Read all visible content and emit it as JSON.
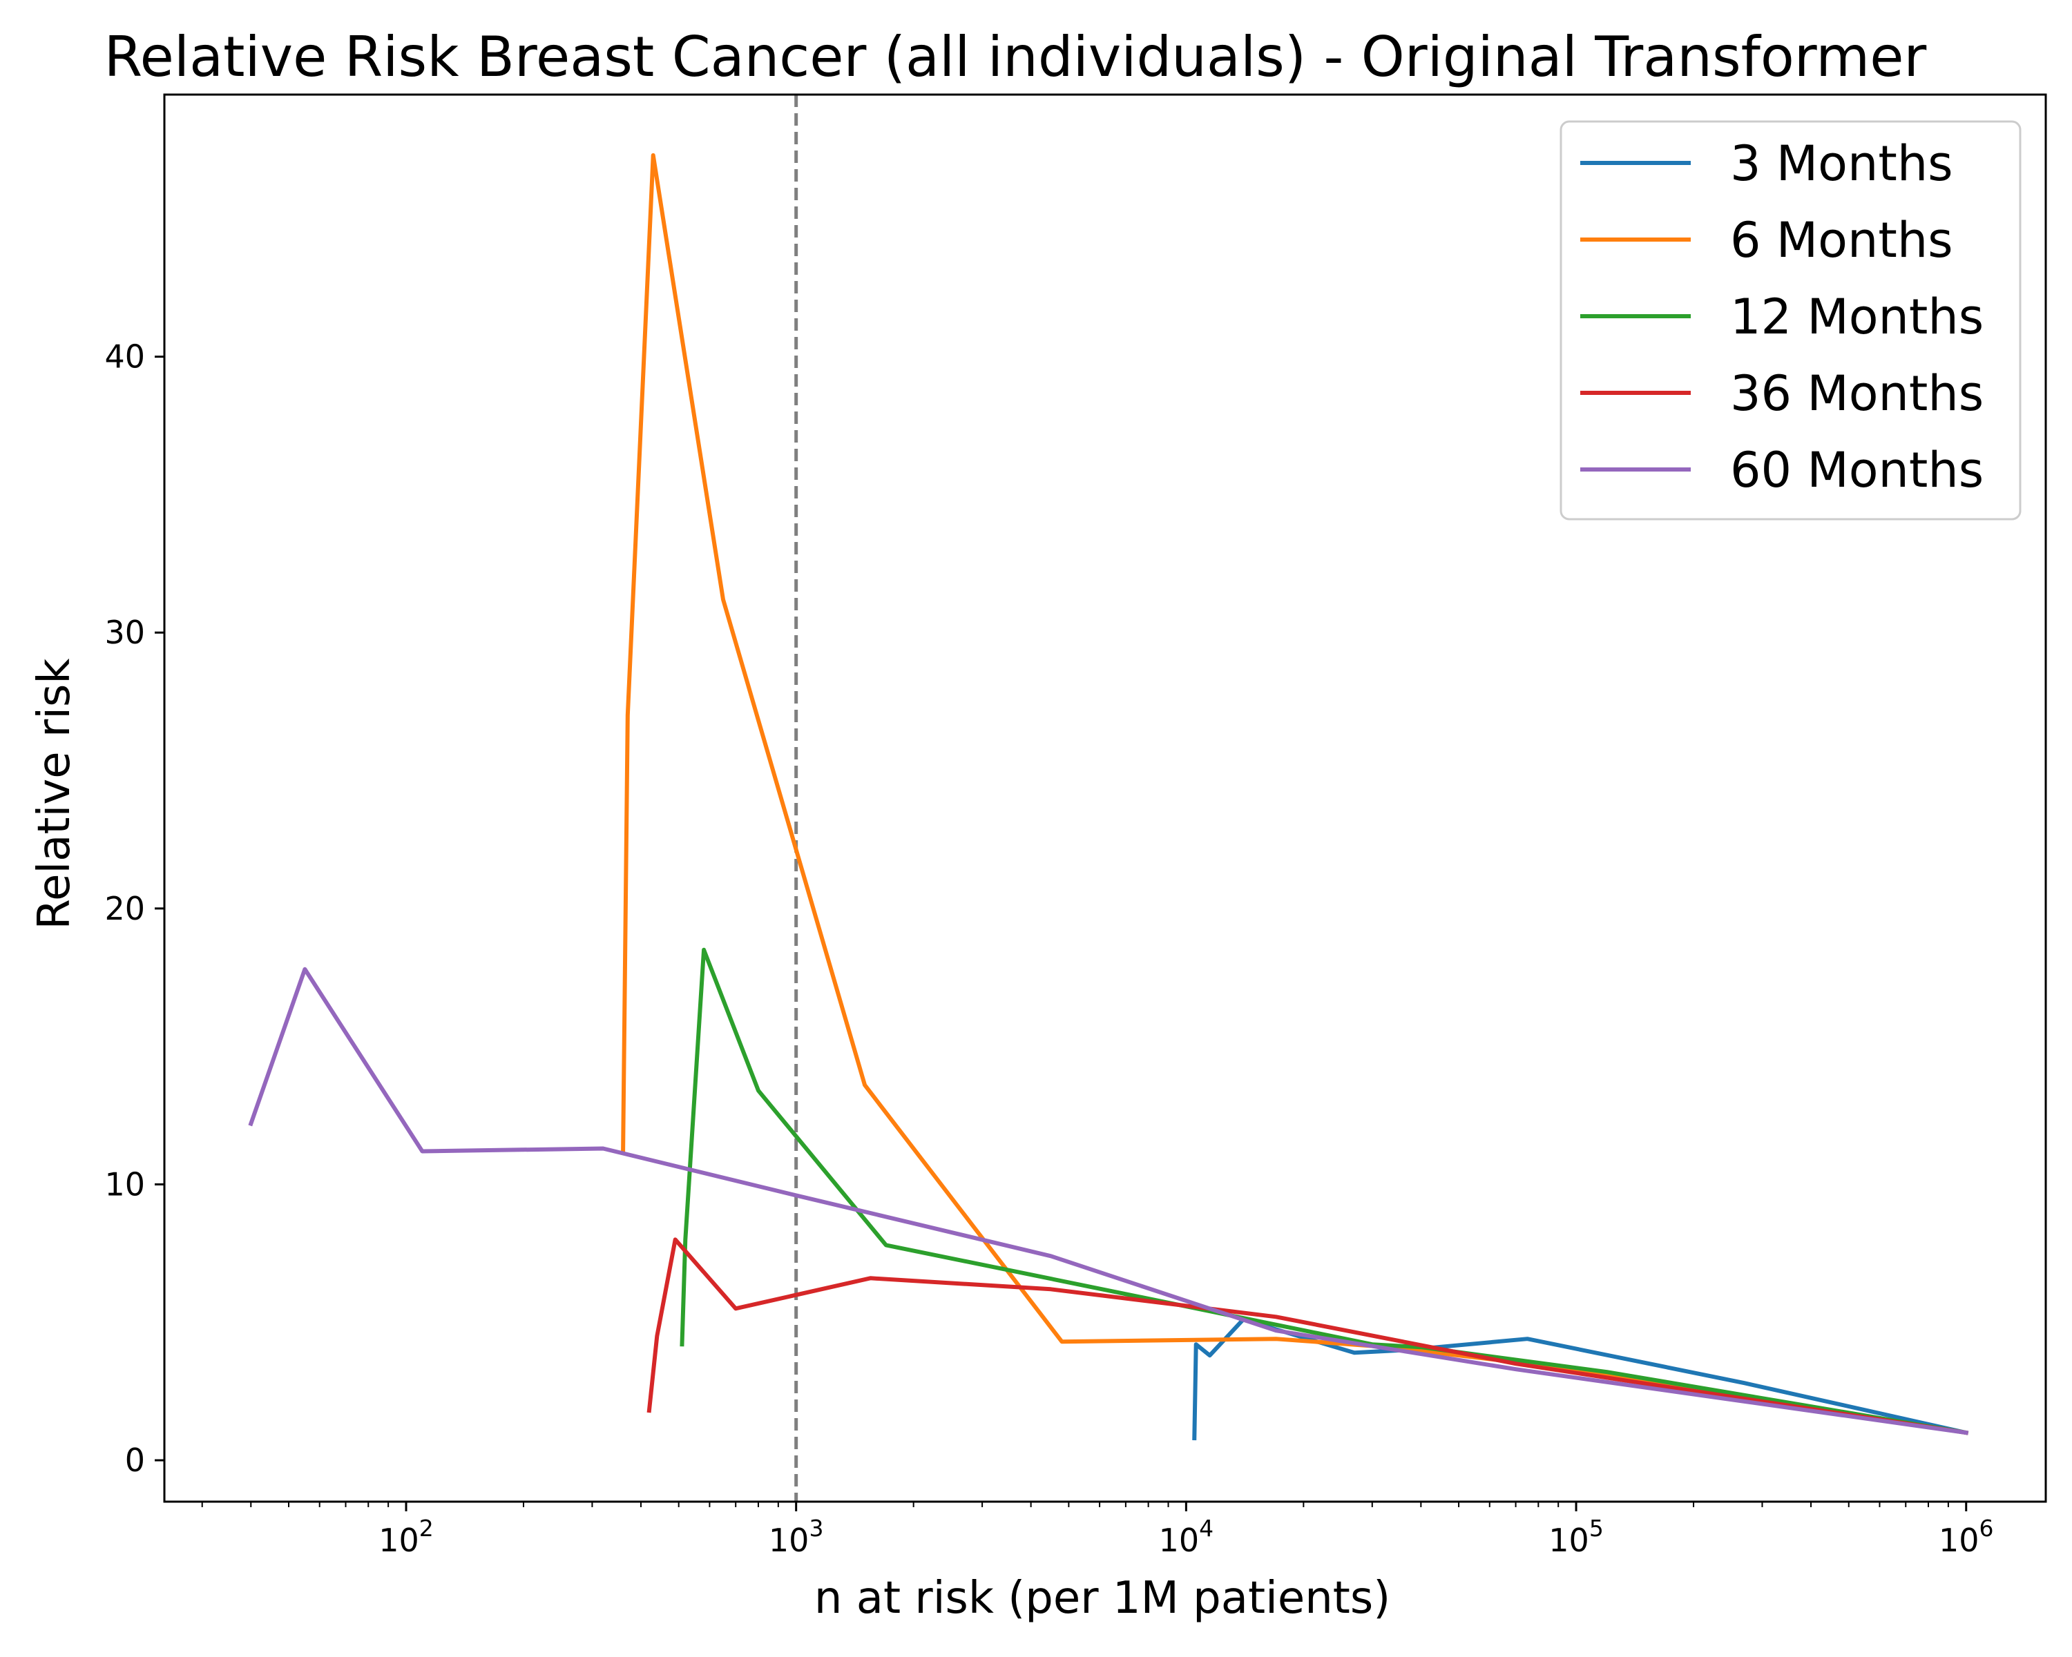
{
  "chart_data": {
    "type": "line",
    "title": "Relative Risk Breast Cancer (all individuals) - Original Transformer",
    "xlabel": "n at risk (per 1M patients)",
    "ylabel": "Relative risk",
    "xscale": "log",
    "xlim": [
      24,
      1600000
    ],
    "ylim": [
      -1.5,
      49.5
    ],
    "x_ticks": [
      {
        "value": 100,
        "base": "10",
        "exp": "2"
      },
      {
        "value": 1000,
        "base": "10",
        "exp": "3"
      },
      {
        "value": 10000,
        "base": "10",
        "exp": "4"
      },
      {
        "value": 100000,
        "base": "10",
        "exp": "5"
      },
      {
        "value": 1000000,
        "base": "10",
        "exp": "6"
      }
    ],
    "y_ticks": [
      {
        "value": 0,
        "label": "0"
      },
      {
        "value": 10,
        "label": "10"
      },
      {
        "value": 20,
        "label": "20"
      },
      {
        "value": 30,
        "label": "30"
      },
      {
        "value": 40,
        "label": "40"
      }
    ],
    "reference_line": {
      "x": 1000,
      "style": "dashed",
      "color": "#7f7f7f"
    },
    "grid": false,
    "legend_position": "top-right",
    "series": [
      {
        "name": "3 Months",
        "color": "#1f77b4",
        "x": [
          10500,
          10600,
          11500,
          14000,
          27000,
          37000,
          75000,
          270000,
          1000000
        ],
        "y": [
          0.8,
          4.2,
          3.8,
          5.1,
          3.9,
          4.0,
          4.4,
          2.8,
          1.0
        ]
      },
      {
        "name": "6 Months",
        "color": "#ff7f0e",
        "x": [
          360,
          370,
          430,
          650,
          1500,
          4800,
          17000,
          33000,
          100000,
          1000000
        ],
        "y": [
          11.2,
          27.0,
          47.3,
          31.2,
          13.6,
          4.3,
          4.4,
          4.1,
          3.3,
          1.0
        ]
      },
      {
        "name": "12 Months",
        "color": "#2ca02c",
        "x": [
          510,
          520,
          580,
          800,
          1700,
          30000,
          40000,
          120000,
          1000000
        ],
        "y": [
          4.2,
          8.0,
          18.5,
          13.4,
          7.8,
          4.2,
          4.1,
          3.2,
          1.0
        ]
      },
      {
        "name": "36 Months",
        "color": "#d62728",
        "x": [
          420,
          440,
          490,
          700,
          1550,
          4500,
          17000,
          70000,
          1000000
        ],
        "y": [
          1.8,
          4.5,
          8.0,
          5.5,
          6.6,
          6.2,
          5.2,
          3.5,
          1.0
        ]
      },
      {
        "name": "60 Months",
        "color": "#9467bd",
        "x": [
          40,
          55,
          110,
          320,
          1000,
          4500,
          17000,
          70000,
          1000000
        ],
        "y": [
          12.2,
          17.8,
          11.2,
          11.3,
          9.6,
          7.4,
          4.7,
          3.3,
          1.0
        ]
      }
    ]
  }
}
